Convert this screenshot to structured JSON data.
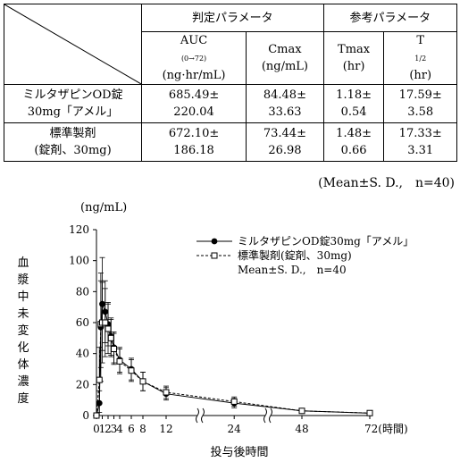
{
  "table": {
    "group_headers": [
      "判定パラメータ",
      "参考パラメータ"
    ],
    "columns": [
      {
        "name": "AUC",
        "sub": "(0→72)",
        "unit": "(ng·hr/mL)"
      },
      {
        "name": "Cmax",
        "sub": "",
        "unit": "(ng/mL)"
      },
      {
        "name": "Tmax",
        "sub": "",
        "unit": "(hr)"
      },
      {
        "name": "T",
        "sub": "1/2",
        "unit": "(hr)"
      }
    ],
    "rows": [
      {
        "label_line1": "ミルタザピンOD錠",
        "label_line2": "30mg「アメル」",
        "cells": [
          [
            "685.49±",
            "220.04"
          ],
          [
            "84.48±",
            "33.63"
          ],
          [
            "1.18±",
            "0.54"
          ],
          [
            "17.59±",
            "3.58"
          ]
        ]
      },
      {
        "label_line1": "標準製剤",
        "label_line2": "(錠剤、30mg)",
        "cells": [
          [
            "672.10±",
            "186.18"
          ],
          [
            "73.44±",
            "26.98"
          ],
          [
            "1.48±",
            "0.66"
          ],
          [
            "17.33±",
            "3.31"
          ]
        ]
      }
    ],
    "note": "(Mean±S. D.,　n=40)"
  },
  "chart_data": {
    "type": "line",
    "ylabel": "血漿中未変化体濃度",
    "yunit": "(ng/mL)",
    "xlabel": "投与後時間",
    "x_tick_labels": [
      "0",
      "1",
      "2",
      "3",
      "4",
      "6",
      "8",
      "12",
      "24",
      "48",
      "72(時間)"
    ],
    "y_tick_labels": [
      "0",
      "20",
      "40",
      "60",
      "80",
      "100",
      "120"
    ],
    "ylim": [
      0,
      120
    ],
    "legend": [
      "ミルタザピンOD錠30mg「アメル」",
      "標準製剤(錠剤、30mg)",
      "Mean±S. D.,　n=40"
    ],
    "legend_position": "top-right",
    "axis_break": "between 12 and 24 hours, and between 24 and 48 hours",
    "series": [
      {
        "name": "ミルタザピンOD錠30mg「アメル」",
        "marker": "filled-circle",
        "line": "solid",
        "x": [
          0,
          0.5,
          0.75,
          1,
          1.5,
          2,
          2.5,
          3,
          4,
          6,
          8,
          12,
          24,
          48,
          72
        ],
        "y": [
          0,
          8,
          57,
          72,
          67,
          59,
          51,
          44,
          36,
          30,
          22,
          14,
          8,
          3,
          1.5
        ],
        "sd": [
          0,
          8,
          35,
          30,
          20,
          14,
          12,
          10,
          8,
          7,
          6,
          4,
          3,
          1,
          0.5
        ]
      },
      {
        "name": "標準製剤(錠剤、30mg)",
        "marker": "open-square",
        "line": "dashed",
        "x": [
          0,
          0.5,
          0.75,
          1,
          1.5,
          2,
          2.5,
          3,
          4,
          6,
          8,
          12,
          24,
          48,
          72
        ],
        "y": [
          0,
          23,
          59,
          60,
          60,
          56,
          50,
          43,
          35,
          29,
          22,
          15,
          9,
          3,
          1.6
        ],
        "sd": [
          0,
          21,
          28,
          26,
          22,
          16,
          12,
          10,
          8,
          7,
          6,
          4,
          3,
          1,
          0.5
        ]
      }
    ]
  }
}
